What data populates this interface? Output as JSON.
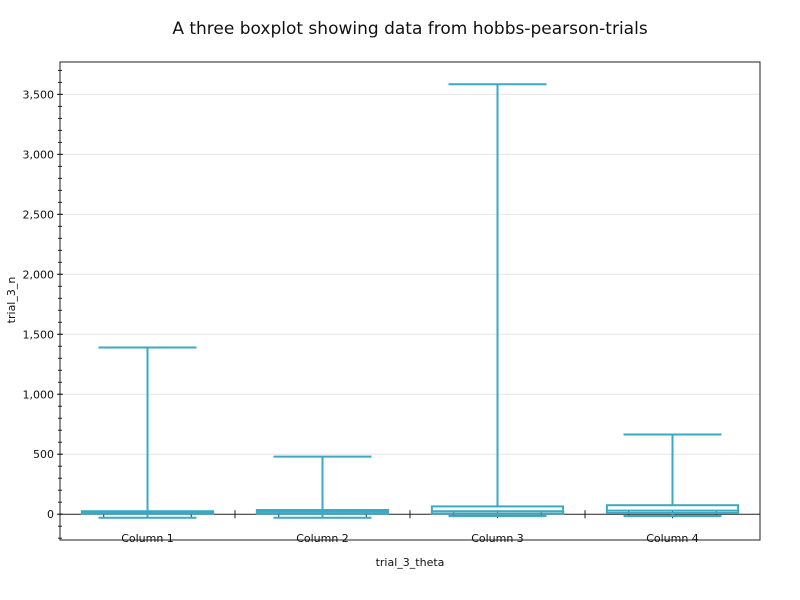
{
  "chart_data": {
    "type": "boxplot",
    "title": "A three boxplot showing data from hobbs-pearson-trials",
    "xlabel": "trial_3_theta",
    "ylabel": "trial_3_n",
    "ylim": [
      -215,
      3770
    ],
    "yticks": [
      0,
      500,
      1000,
      1500,
      2000,
      2500,
      3000,
      3500
    ],
    "ytick_labels": [
      "0",
      "500",
      "1,000",
      "1,500",
      "2,000",
      "2,500",
      "3,000",
      "3,500"
    ],
    "grid": true,
    "color": "#3aa9c4",
    "categories": [
      "Column 1",
      "Column 2",
      "Column 3",
      "Column 4"
    ],
    "series": [
      {
        "category": "Column 1",
        "min": -30,
        "q1": 5,
        "median": 15,
        "q3": 25,
        "max": 1390
      },
      {
        "category": "Column 2",
        "min": -30,
        "q1": 5,
        "median": 20,
        "q3": 35,
        "max": 480
      },
      {
        "category": "Column 3",
        "min": -15,
        "q1": 5,
        "median": 25,
        "q3": 65,
        "max": 3585
      },
      {
        "category": "Column 4",
        "min": -15,
        "q1": 10,
        "median": 30,
        "q3": 75,
        "max": 665
      }
    ]
  }
}
